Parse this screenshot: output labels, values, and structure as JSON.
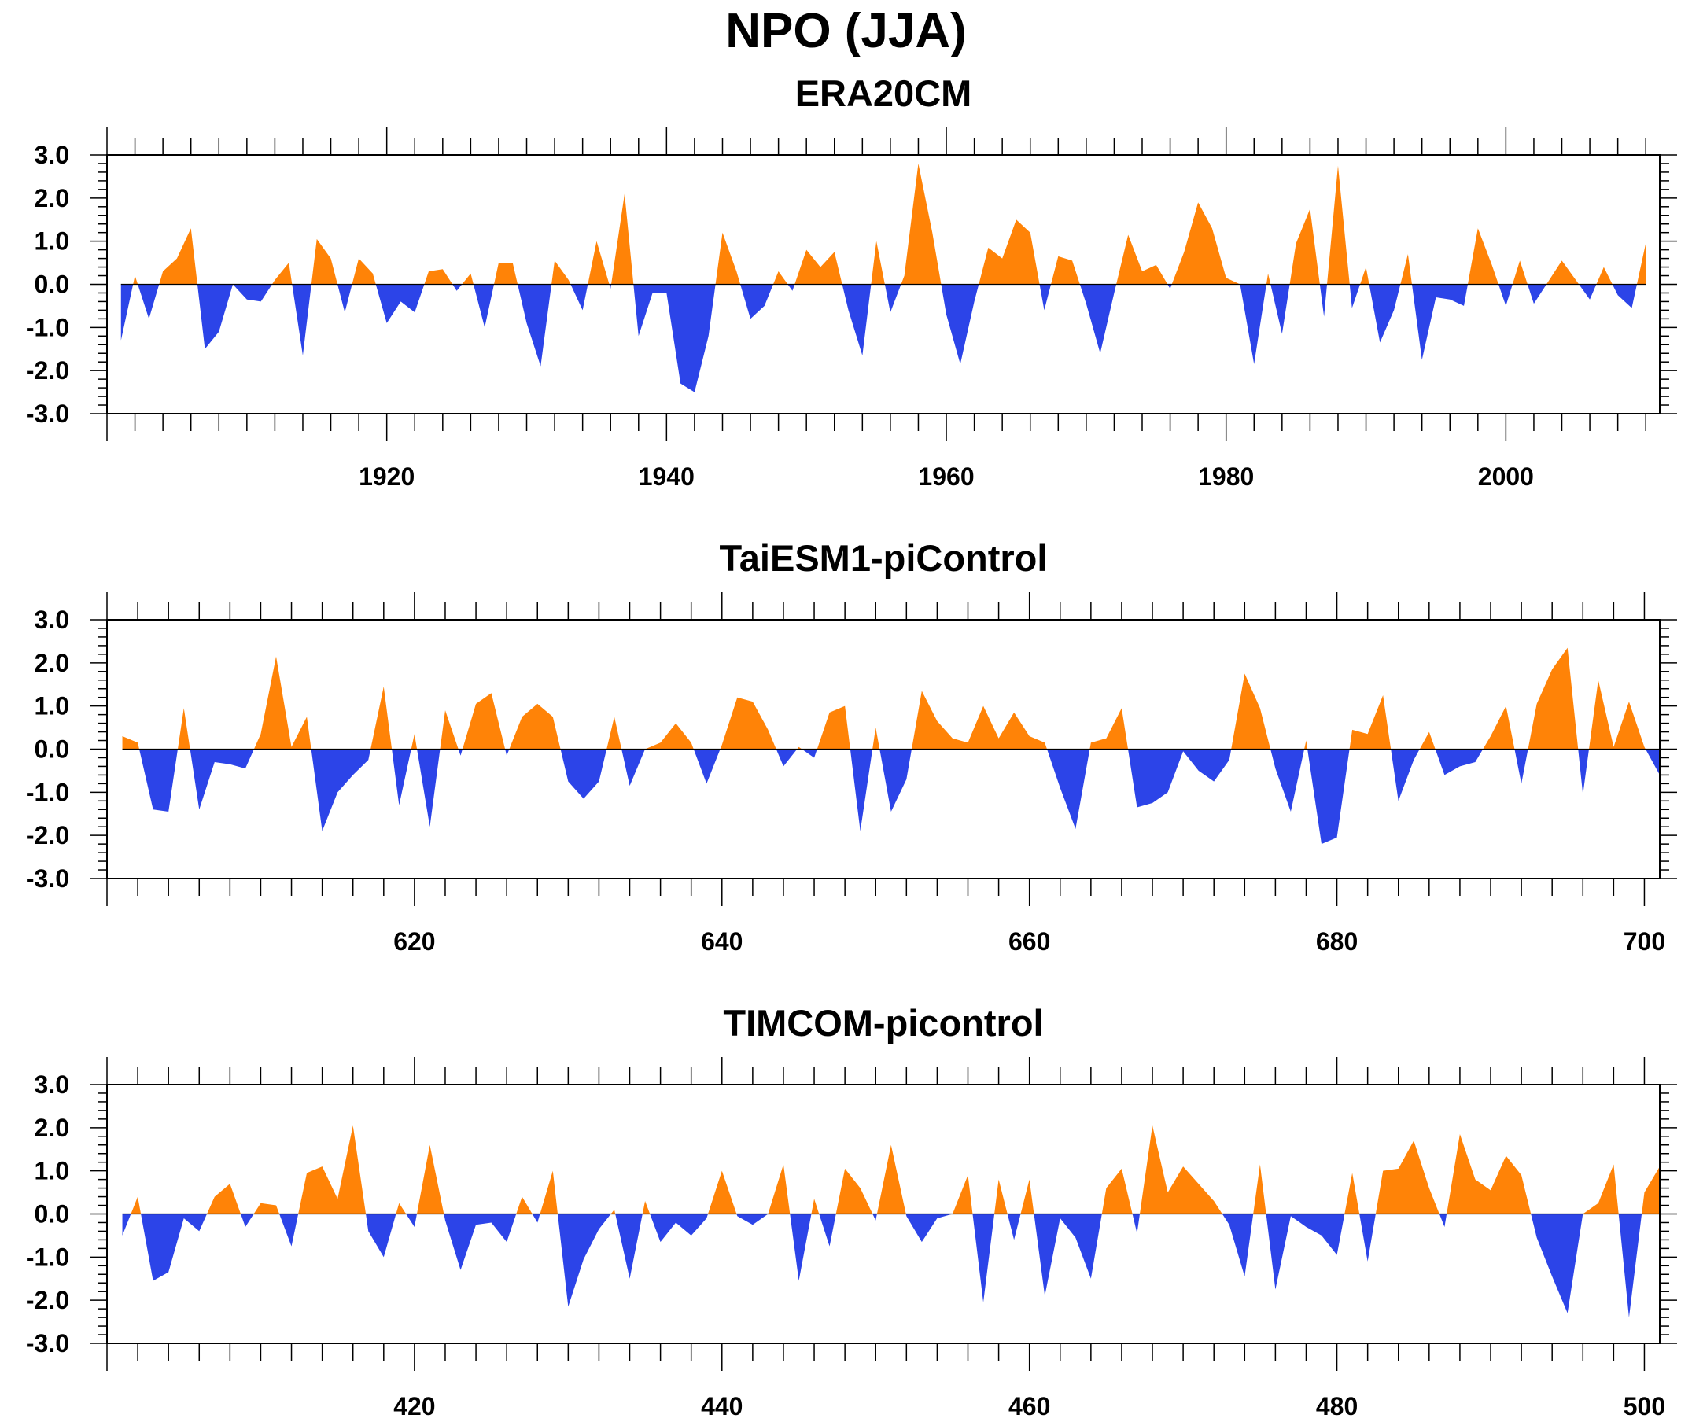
{
  "title": "NPO (JJA)",
  "colors": {
    "positive": "#FF8307",
    "negative": "#2C44E8",
    "axis": "#000000"
  },
  "chart_data": [
    {
      "type": "area",
      "title": "ERA20CM",
      "xlabel": "",
      "ylabel": "",
      "ylim": [
        -3,
        3
      ],
      "yticks": [
        "3.0",
        "2.0",
        "1.0",
        "0.0",
        "-1.0",
        "-2.0",
        "-3.0"
      ],
      "xlim": [
        1900,
        2011
      ],
      "xticks": [
        "1920",
        "1940",
        "1960",
        "1980",
        "2000"
      ],
      "x_start": 1901,
      "values": [
        -1.3,
        0.2,
        -0.8,
        0.3,
        0.6,
        1.3,
        -1.5,
        -1.1,
        0.0,
        -0.35,
        -0.4,
        0.1,
        0.5,
        -1.65,
        1.05,
        0.6,
        -0.65,
        0.6,
        0.25,
        -0.9,
        -0.4,
        -0.65,
        0.3,
        0.35,
        -0.15,
        0.25,
        -1.0,
        0.5,
        0.5,
        -0.9,
        -1.9,
        0.55,
        0.1,
        -0.6,
        1.0,
        -0.1,
        2.1,
        -1.2,
        -0.2,
        -0.2,
        -2.3,
        -2.5,
        -1.2,
        1.2,
        0.3,
        -0.8,
        -0.5,
        0.3,
        -0.15,
        0.8,
        0.4,
        0.75,
        -0.6,
        -1.65,
        1.0,
        -0.65,
        0.2,
        2.8,
        1.2,
        -0.7,
        -1.85,
        -0.4,
        0.85,
        0.6,
        1.5,
        1.2,
        -0.6,
        0.65,
        0.55,
        -0.45,
        -1.6,
        -0.2,
        1.15,
        0.3,
        0.45,
        -0.1,
        0.75,
        1.9,
        1.3,
        0.15,
        0.0,
        -1.85,
        0.25,
        -1.15,
        0.95,
        1.75,
        -0.75,
        2.75,
        -0.55,
        0.4,
        -1.35,
        -0.6,
        0.7,
        -1.75,
        -0.3,
        -0.35,
        -0.5,
        1.3,
        0.45,
        -0.5,
        0.55,
        -0.45,
        0.05,
        0.55,
        0.1,
        -0.35,
        0.4,
        -0.25,
        -0.55,
        0.95
      ]
    },
    {
      "type": "area",
      "title": "TaiESM1-piControl",
      "xlabel": "",
      "ylabel": "",
      "ylim": [
        -3,
        3
      ],
      "yticks": [
        "3.0",
        "2.0",
        "1.0",
        "0.0",
        "-1.0",
        "-2.0",
        "-3.0"
      ],
      "xlim": [
        600,
        701
      ],
      "xticks": [
        "620",
        "640",
        "660",
        "680",
        "700"
      ],
      "x_start": 601,
      "values": [
        0.3,
        0.15,
        -1.4,
        -1.45,
        0.95,
        -1.4,
        -0.3,
        -0.35,
        -0.45,
        0.35,
        2.15,
        0.05,
        0.75,
        -1.9,
        -1.0,
        -0.6,
        -0.25,
        1.45,
        -1.3,
        0.35,
        -1.8,
        0.9,
        -0.15,
        1.05,
        1.3,
        -0.15,
        0.75,
        1.05,
        0.75,
        -0.75,
        -1.15,
        -0.75,
        0.75,
        -0.85,
        0.0,
        0.15,
        0.6,
        0.15,
        -0.8,
        0.1,
        1.2,
        1.1,
        0.45,
        -0.4,
        0.05,
        -0.2,
        0.85,
        1.0,
        -1.9,
        0.5,
        -1.45,
        -0.7,
        1.35,
        0.65,
        0.25,
        0.15,
        1.0,
        0.25,
        0.85,
        0.3,
        0.15,
        -0.9,
        -1.85,
        0.15,
        0.25,
        0.95,
        -1.35,
        -1.25,
        -1.0,
        -0.05,
        -0.5,
        -0.75,
        -0.25,
        1.75,
        0.95,
        -0.45,
        -1.45,
        0.2,
        -2.2,
        -2.05,
        0.45,
        0.35,
        1.25,
        -1.2,
        -0.25,
        0.4,
        -0.6,
        -0.4,
        -0.3,
        0.3,
        1.0,
        -0.8,
        1.05,
        1.85,
        2.35,
        -1.05,
        1.6,
        0.05,
        1.1,
        0.05,
        -0.6
      ]
    },
    {
      "type": "area",
      "title": "TIMCOM-picontrol",
      "xlabel": "",
      "ylabel": "",
      "ylim": [
        -3,
        3
      ],
      "yticks": [
        "3.0",
        "2.0",
        "1.0",
        "0.0",
        "-1.0",
        "-2.0",
        "-3.0"
      ],
      "xlim": [
        400,
        501
      ],
      "xticks": [
        "420",
        "440",
        "460",
        "480",
        "500"
      ],
      "x_start": 401,
      "values": [
        -0.5,
        0.4,
        -1.55,
        -1.35,
        -0.1,
        -0.4,
        0.4,
        0.7,
        -0.3,
        0.25,
        0.2,
        -0.75,
        0.95,
        1.1,
        0.35,
        2.05,
        -0.4,
        -1.0,
        0.25,
        -0.3,
        1.6,
        -0.15,
        -1.3,
        -0.25,
        -0.2,
        -0.65,
        0.4,
        -0.2,
        1.0,
        -2.15,
        -1.05,
        -0.35,
        0.1,
        -1.5,
        0.3,
        -0.65,
        -0.2,
        -0.5,
        -0.1,
        1.0,
        -0.05,
        -0.25,
        0.0,
        1.15,
        -1.55,
        0.35,
        -0.75,
        1.05,
        0.6,
        -0.15,
        1.6,
        -0.05,
        -0.65,
        -0.1,
        0.0,
        0.9,
        -2.05,
        0.8,
        -0.6,
        0.8,
        -1.9,
        -0.1,
        -0.55,
        -1.5,
        0.6,
        1.05,
        -0.45,
        2.05,
        0.5,
        1.1,
        0.7,
        0.3,
        -0.25,
        -1.45,
        1.15,
        -1.75,
        -0.05,
        -0.3,
        -0.5,
        -0.95,
        0.95,
        -1.1,
        1.0,
        1.05,
        1.7,
        0.6,
        -0.3,
        1.85,
        0.8,
        0.55,
        1.35,
        0.9,
        -0.55,
        -1.45,
        -2.3,
        0.0,
        0.25,
        1.15,
        -2.4,
        0.5,
        1.1
      ]
    }
  ]
}
